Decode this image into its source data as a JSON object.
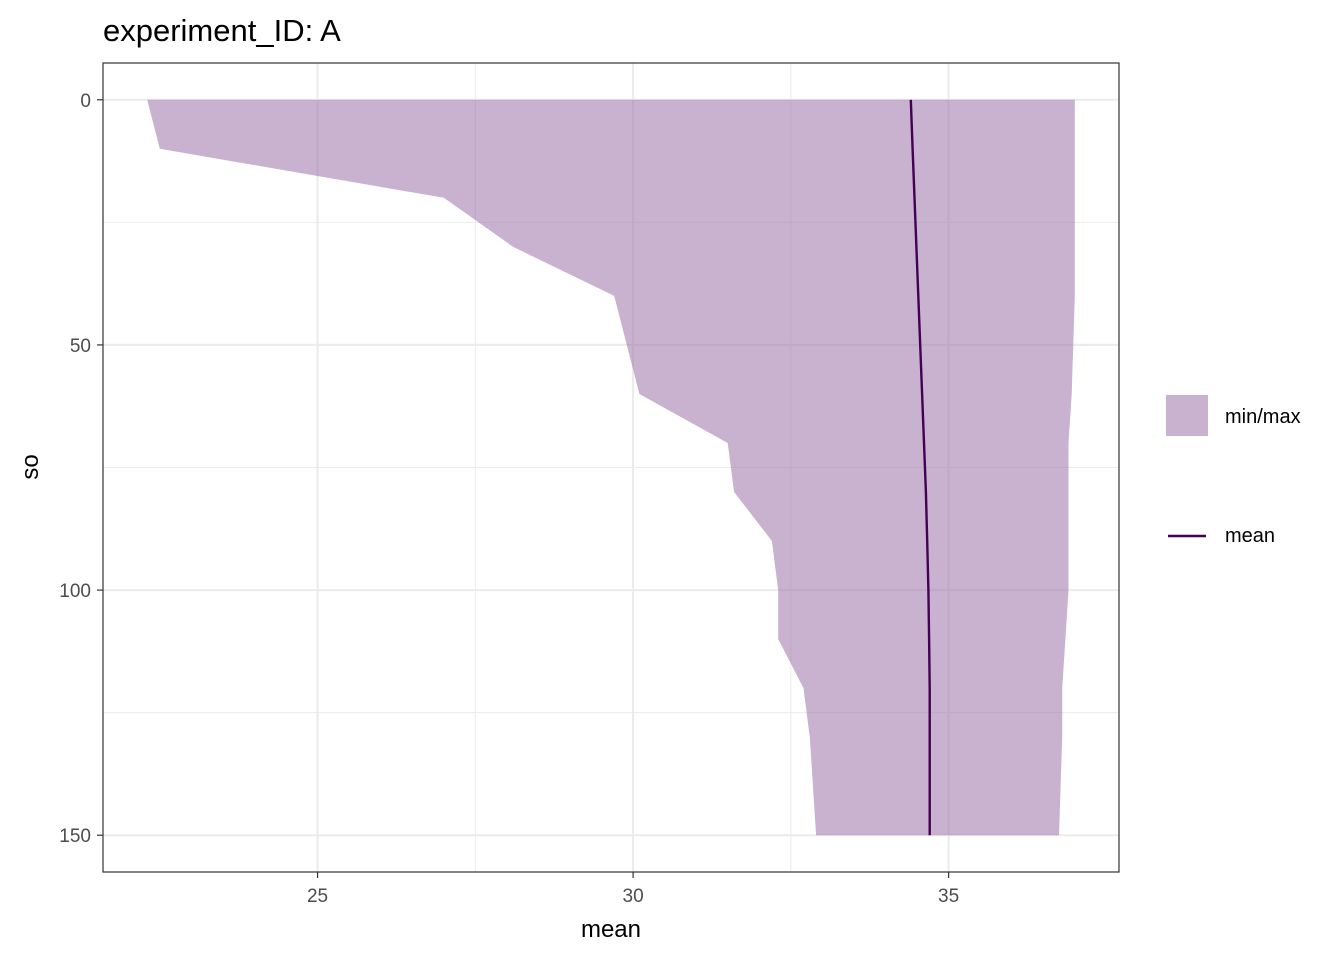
{
  "chart_data": {
    "type": "area",
    "title": "experiment_ID: A",
    "xlabel": "mean",
    "ylabel": "so",
    "xlim": [
      21.6,
      37.7
    ],
    "ylim": [
      -7.5,
      157.5
    ],
    "y_reversed": true,
    "x_ticks": [
      25,
      30,
      35
    ],
    "y_ticks": [
      0,
      50,
      100,
      150
    ],
    "grid": true,
    "legend_position": "right",
    "colors": {
      "ribbon": "#9b72a8",
      "mean_line": "#440154",
      "grid": "#ebebeb",
      "panel_border": "#333333"
    },
    "series": [
      {
        "name": "min/max",
        "kind": "ribbon",
        "y": [
          0,
          10,
          20,
          30,
          40,
          60,
          70,
          80,
          90,
          100,
          110,
          120,
          130,
          150
        ],
        "xmin": [
          22.3,
          22.5,
          27.0,
          28.1,
          29.7,
          30.1,
          31.5,
          31.6,
          32.2,
          32.3,
          32.3,
          32.7,
          32.8,
          32.9
        ],
        "xmax": [
          37.0,
          37.0,
          37.0,
          37.0,
          37.0,
          36.95,
          36.9,
          36.9,
          36.9,
          36.9,
          36.85,
          36.8,
          36.8,
          36.75
        ]
      },
      {
        "name": "mean",
        "kind": "line",
        "y": [
          0,
          10,
          20,
          30,
          40,
          50,
          60,
          70,
          80,
          90,
          100,
          110,
          120,
          130,
          140,
          150
        ],
        "x": [
          34.4,
          34.43,
          34.46,
          34.49,
          34.52,
          34.55,
          34.58,
          34.61,
          34.64,
          34.66,
          34.68,
          34.69,
          34.7,
          34.7,
          34.7,
          34.7
        ]
      }
    ]
  }
}
